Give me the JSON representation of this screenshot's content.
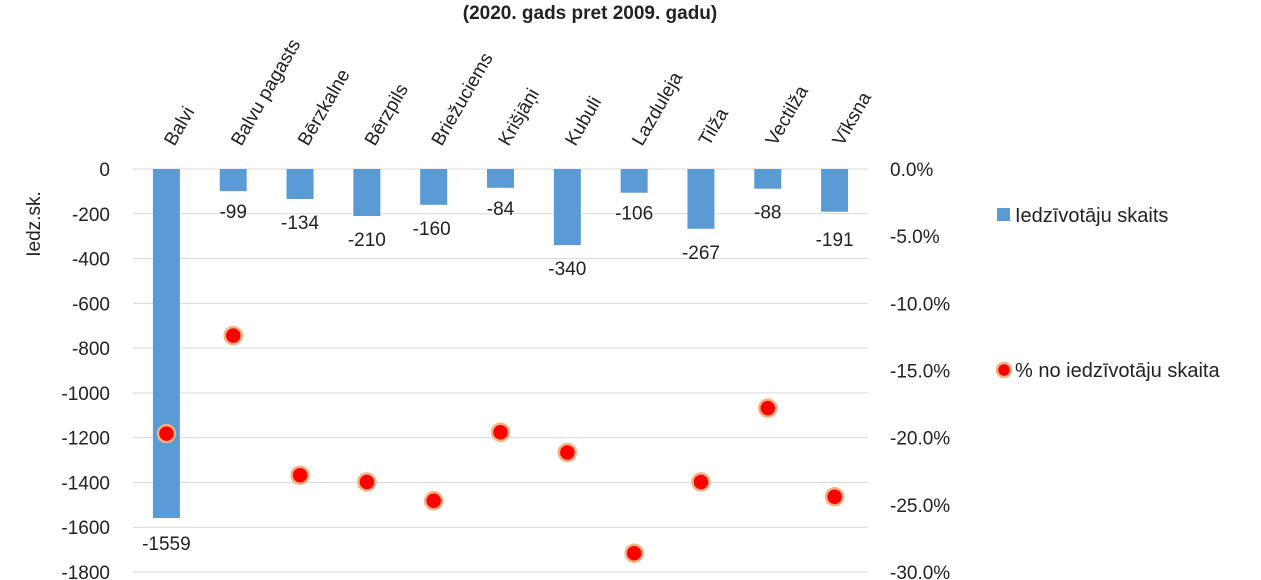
{
  "chart_data": {
    "type": "bar",
    "title": "(2020. gads pret 2009. gadu)",
    "ylabel": "Iedz.sk.",
    "categories": [
      "Balvi",
      "Balvu pagasts",
      "Bērzkalne",
      "Bērzpils",
      "Briežuciems",
      "Krišjāņi",
      "Kubuli",
      "Lazduleja",
      "Tilža",
      "Vectilža",
      "Vīksna"
    ],
    "series": [
      {
        "name": "Iedzīvotāju skaits",
        "type": "bar",
        "axis": "left",
        "color": "#5b9bd5",
        "values": [
          -1559,
          -99,
          -134,
          -210,
          -160,
          -84,
          -340,
          -106,
          -267,
          -88,
          -191
        ],
        "labels": [
          "-1559",
          "-99",
          "-134",
          "-210",
          "-160",
          "-84",
          "-340",
          "-106",
          "-267",
          "-88",
          "-191"
        ]
      },
      {
        "name": "% no iedzīvotāju skaita",
        "type": "scatter",
        "axis": "right",
        "color": "#ff0000",
        "edge_color": "#f4b183",
        "values": [
          -19.7,
          -12.4,
          -22.8,
          -23.3,
          -24.7,
          -19.6,
          -21.1,
          -28.6,
          -23.3,
          -17.8,
          -24.4
        ]
      }
    ],
    "left_axis": {
      "ylim": [
        -1800,
        0
      ],
      "ticks": [
        0,
        -200,
        -400,
        -600,
        -800,
        -1000,
        -1200,
        -1400,
        -1600,
        -1800
      ],
      "tick_labels": [
        "0",
        "-200",
        "-400",
        "-600",
        "-800",
        "-1000",
        "-1200",
        "-1400",
        "-1600",
        "-1800"
      ]
    },
    "right_axis": {
      "ylim": [
        -30,
        0
      ],
      "ticks": [
        0,
        -5,
        -10,
        -15,
        -20,
        -25,
        -30
      ],
      "tick_labels": [
        "0.0%",
        "-5.0%",
        "-10.0%",
        "-15.0%",
        "-20.0%",
        "-25.0%",
        "-30.0%"
      ]
    },
    "grid": true,
    "gridline_color": "#d9d9d9",
    "legend_position": "right"
  }
}
